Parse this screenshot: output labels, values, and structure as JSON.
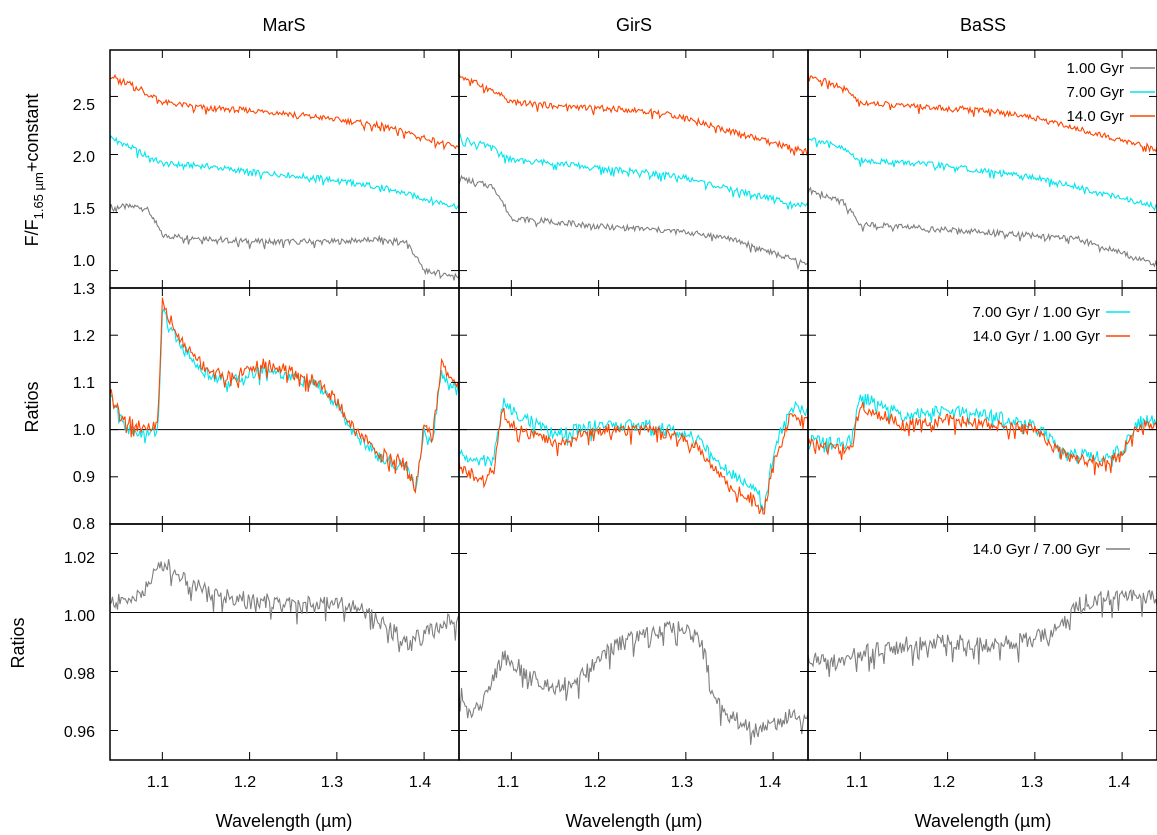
{
  "figure": {
    "columns": [
      "MarS",
      "GirS",
      "BaSS"
    ],
    "xlabel": "Wavelength (µm)",
    "x_ticks": [
      "1.1",
      "1.2",
      "1.3",
      "1.4"
    ],
    "rows": [
      {
        "ylabel_main": "F/F",
        "ylabel_sub": "1.65 µm",
        "ylabel_tail": "+constant",
        "y_ticks": [
          "1.0",
          "1.5",
          "2.0",
          "2.5"
        ]
      },
      {
        "ylabel": "Ratios",
        "y_ticks": [
          "0.8",
          "0.9",
          "1.0",
          "1.1",
          "1.2",
          "1.3"
        ]
      },
      {
        "ylabel": "Ratios",
        "y_ticks": [
          "0.96",
          "0.98",
          "1.00",
          "1.02"
        ]
      }
    ],
    "legends": {
      "row1": [
        "1.00 Gyr",
        "7.00 Gyr",
        "14.0 Gyr"
      ],
      "row2": [
        "7.00 Gyr / 1.00 Gyr",
        "14.0 Gyr / 1.00 Gyr"
      ],
      "row3": [
        "14.0 Gyr / 7.00 Gyr"
      ]
    }
  },
  "colors": {
    "gray": "#7f7f7f",
    "cyan": "#00e5ee",
    "orange": "#ff4500"
  },
  "chart_data": [
    {
      "type": "line",
      "panel": "MarS spectra",
      "xlim": [
        1.04,
        1.44
      ],
      "ylim": [
        0.85,
        2.9
      ],
      "series": [
        {
          "name": "1.00 Gyr",
          "color": "gray",
          "x": [
            1.04,
            1.08,
            1.09,
            1.1,
            1.15,
            1.2,
            1.25,
            1.3,
            1.35,
            1.38,
            1.4,
            1.44
          ],
          "y": [
            1.55,
            1.55,
            1.45,
            1.3,
            1.28,
            1.25,
            1.25,
            1.25,
            1.27,
            1.25,
            1.0,
            0.95
          ]
        },
        {
          "name": "7.00 Gyr",
          "color": "cyan",
          "x": [
            1.04,
            1.08,
            1.1,
            1.15,
            1.2,
            1.25,
            1.3,
            1.35,
            1.4,
            1.44
          ],
          "y": [
            2.15,
            2.0,
            1.92,
            1.9,
            1.85,
            1.82,
            1.78,
            1.72,
            1.62,
            1.55
          ]
        },
        {
          "name": "14.0 Gyr",
          "color": "orange",
          "x": [
            1.04,
            1.08,
            1.1,
            1.15,
            1.2,
            1.25,
            1.3,
            1.35,
            1.4,
            1.44
          ],
          "y": [
            2.68,
            2.55,
            2.45,
            2.4,
            2.38,
            2.35,
            2.3,
            2.25,
            2.15,
            2.05
          ]
        }
      ]
    },
    {
      "type": "line",
      "panel": "GirS spectra",
      "xlim": [
        1.04,
        1.44
      ],
      "ylim": [
        0.85,
        2.9
      ],
      "series": [
        {
          "name": "1.00 Gyr",
          "color": "gray",
          "x": [
            1.04,
            1.08,
            1.1,
            1.15,
            1.2,
            1.25,
            1.3,
            1.35,
            1.4,
            1.44
          ],
          "y": [
            1.8,
            1.72,
            1.45,
            1.42,
            1.38,
            1.36,
            1.33,
            1.28,
            1.15,
            1.05
          ]
        },
        {
          "name": "7.00 Gyr",
          "color": "cyan",
          "x": [
            1.04,
            1.08,
            1.1,
            1.15,
            1.2,
            1.25,
            1.3,
            1.35,
            1.4,
            1.44
          ],
          "y": [
            2.15,
            2.05,
            1.95,
            1.93,
            1.88,
            1.85,
            1.8,
            1.7,
            1.62,
            1.55
          ]
        },
        {
          "name": "14.0 Gyr",
          "color": "orange",
          "x": [
            1.04,
            1.08,
            1.1,
            1.15,
            1.2,
            1.25,
            1.3,
            1.35,
            1.4,
            1.44
          ],
          "y": [
            2.68,
            2.55,
            2.45,
            2.42,
            2.4,
            2.38,
            2.32,
            2.2,
            2.1,
            2.02
          ]
        }
      ]
    },
    {
      "type": "line",
      "panel": "BaSS spectra",
      "xlim": [
        1.04,
        1.44
      ],
      "ylim": [
        0.85,
        2.9
      ],
      "series": [
        {
          "name": "1.00 Gyr",
          "color": "gray",
          "x": [
            1.04,
            1.08,
            1.1,
            1.15,
            1.2,
            1.25,
            1.3,
            1.35,
            1.4,
            1.44
          ],
          "y": [
            1.7,
            1.6,
            1.4,
            1.38,
            1.35,
            1.33,
            1.3,
            1.27,
            1.15,
            1.05
          ]
        },
        {
          "name": "7.00 Gyr",
          "color": "cyan",
          "x": [
            1.04,
            1.08,
            1.1,
            1.15,
            1.2,
            1.25,
            1.3,
            1.35,
            1.4,
            1.44
          ],
          "y": [
            2.15,
            2.05,
            1.95,
            1.93,
            1.9,
            1.85,
            1.8,
            1.72,
            1.62,
            1.55
          ]
        },
        {
          "name": "14.0 Gyr",
          "color": "orange",
          "x": [
            1.04,
            1.08,
            1.1,
            1.15,
            1.2,
            1.25,
            1.3,
            1.35,
            1.4,
            1.44
          ],
          "y": [
            2.68,
            2.58,
            2.45,
            2.42,
            2.4,
            2.38,
            2.32,
            2.22,
            2.12,
            2.05
          ]
        }
      ]
    },
    {
      "type": "line",
      "panel": "MarS ratios",
      "xlim": [
        1.04,
        1.44
      ],
      "ylim": [
        0.8,
        1.3
      ],
      "hline": 1.0,
      "series": [
        {
          "name": "7.00 Gyr / 1.00 Gyr",
          "color": "cyan",
          "x": [
            1.04,
            1.06,
            1.08,
            1.095,
            1.1,
            1.12,
            1.15,
            1.18,
            1.2,
            1.22,
            1.25,
            1.28,
            1.3,
            1.32,
            1.35,
            1.38,
            1.39,
            1.4,
            1.41,
            1.42,
            1.44
          ],
          "y": [
            1.07,
            1.0,
            0.99,
            1.0,
            1.25,
            1.18,
            1.12,
            1.1,
            1.12,
            1.13,
            1.11,
            1.09,
            1.05,
            0.99,
            0.94,
            0.92,
            0.88,
            1.0,
            0.98,
            1.12,
            1.08
          ]
        },
        {
          "name": "14.0 Gyr / 1.00 Gyr",
          "color": "orange",
          "x": [
            1.04,
            1.06,
            1.08,
            1.095,
            1.1,
            1.12,
            1.15,
            1.18,
            1.2,
            1.22,
            1.25,
            1.28,
            1.3,
            1.32,
            1.35,
            1.38,
            1.39,
            1.4,
            1.41,
            1.42,
            1.44
          ],
          "y": [
            1.08,
            1.02,
            1.0,
            1.01,
            1.27,
            1.19,
            1.13,
            1.11,
            1.13,
            1.14,
            1.12,
            1.1,
            1.06,
            1.0,
            0.95,
            0.93,
            0.87,
            1.01,
            0.99,
            1.14,
            1.09
          ]
        }
      ]
    },
    {
      "type": "line",
      "panel": "GirS ratios",
      "xlim": [
        1.04,
        1.44
      ],
      "ylim": [
        0.8,
        1.3
      ],
      "hline": 1.0,
      "series": [
        {
          "name": "7.00 Gyr / 1.00 Gyr",
          "color": "cyan",
          "x": [
            1.04,
            1.06,
            1.08,
            1.09,
            1.1,
            1.15,
            1.2,
            1.25,
            1.28,
            1.3,
            1.32,
            1.35,
            1.38,
            1.39,
            1.4,
            1.42,
            1.44
          ],
          "y": [
            0.95,
            0.93,
            0.94,
            1.06,
            1.04,
            0.99,
            1.01,
            1.01,
            1.0,
            0.99,
            0.97,
            0.91,
            0.88,
            0.85,
            0.95,
            1.05,
            1.04
          ]
        },
        {
          "name": "14.0 Gyr / 1.00 Gyr",
          "color": "orange",
          "x": [
            1.04,
            1.06,
            1.08,
            1.09,
            1.1,
            1.15,
            1.2,
            1.25,
            1.28,
            1.3,
            1.32,
            1.35,
            1.38,
            1.39,
            1.4,
            1.42,
            1.44
          ],
          "y": [
            0.92,
            0.9,
            0.91,
            1.05,
            1.01,
            0.97,
            1.0,
            1.0,
            0.99,
            0.98,
            0.95,
            0.88,
            0.85,
            0.83,
            0.93,
            1.03,
            1.02
          ]
        }
      ]
    },
    {
      "type": "line",
      "panel": "BaSS ratios",
      "xlim": [
        1.04,
        1.44
      ],
      "ylim": [
        0.8,
        1.3
      ],
      "hline": 1.0,
      "series": [
        {
          "name": "7.00 Gyr / 1.00 Gyr",
          "color": "cyan",
          "x": [
            1.04,
            1.08,
            1.09,
            1.1,
            1.15,
            1.2,
            1.25,
            1.3,
            1.33,
            1.35,
            1.38,
            1.4,
            1.42,
            1.44
          ],
          "y": [
            0.98,
            0.97,
            0.98,
            1.07,
            1.03,
            1.04,
            1.03,
            1.01,
            0.96,
            0.95,
            0.94,
            0.96,
            1.02,
            1.02
          ]
        },
        {
          "name": "14.0 Gyr / 1.00 Gyr",
          "color": "orange",
          "x": [
            1.04,
            1.08,
            1.09,
            1.1,
            1.15,
            1.2,
            1.25,
            1.3,
            1.33,
            1.35,
            1.38,
            1.4,
            1.42,
            1.44
          ],
          "y": [
            0.97,
            0.96,
            0.97,
            1.05,
            1.01,
            1.02,
            1.01,
            1.0,
            0.95,
            0.94,
            0.93,
            0.95,
            1.01,
            1.01
          ]
        }
      ]
    },
    {
      "type": "line",
      "panel": "MarS 14/7",
      "xlim": [
        1.04,
        1.44
      ],
      "ylim": [
        0.95,
        1.03
      ],
      "hline": 1.0,
      "series": [
        {
          "name": "14.0 Gyr / 7.00 Gyr",
          "color": "gray",
          "x": [
            1.04,
            1.06,
            1.08,
            1.1,
            1.15,
            1.2,
            1.25,
            1.3,
            1.33,
            1.35,
            1.38,
            1.4,
            1.42,
            1.44
          ],
          "y": [
            1.003,
            1.004,
            1.008,
            1.017,
            1.007,
            1.004,
            1.003,
            1.004,
            1.001,
            0.997,
            0.99,
            0.992,
            0.996,
            0.998
          ]
        }
      ]
    },
    {
      "type": "line",
      "panel": "GirS 14/7",
      "xlim": [
        1.04,
        1.44
      ],
      "ylim": [
        0.95,
        1.03
      ],
      "hline": 1.0,
      "series": [
        {
          "name": "14.0 Gyr / 7.00 Gyr",
          "color": "gray",
          "x": [
            1.04,
            1.05,
            1.07,
            1.09,
            1.1,
            1.12,
            1.15,
            1.18,
            1.2,
            1.23,
            1.26,
            1.28,
            1.3,
            1.32,
            1.33,
            1.35,
            1.38,
            1.4,
            1.42,
            1.44
          ],
          "y": [
            0.975,
            0.965,
            0.972,
            0.985,
            0.984,
            0.978,
            0.975,
            0.978,
            0.985,
            0.99,
            0.993,
            0.995,
            0.994,
            0.99,
            0.972,
            0.965,
            0.96,
            0.962,
            0.965,
            0.965
          ]
        }
      ]
    },
    {
      "type": "line",
      "panel": "BaSS 14/7",
      "xlim": [
        1.04,
        1.44
      ],
      "ylim": [
        0.95,
        1.03
      ],
      "hline": 1.0,
      "series": [
        {
          "name": "14.0 Gyr / 7.00 Gyr",
          "color": "gray",
          "x": [
            1.04,
            1.06,
            1.08,
            1.1,
            1.15,
            1.2,
            1.25,
            1.3,
            1.33,
            1.35,
            1.38,
            1.4,
            1.44
          ],
          "y": [
            0.985,
            0.983,
            0.984,
            0.986,
            0.989,
            0.99,
            0.989,
            0.991,
            0.995,
            1.003,
            1.005,
            1.005,
            1.005
          ]
        }
      ]
    }
  ]
}
